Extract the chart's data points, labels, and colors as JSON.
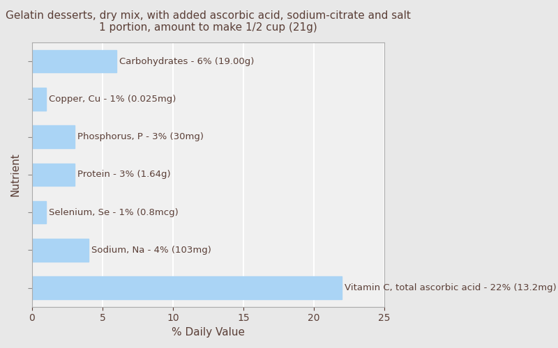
{
  "title_line1": "Gelatin desserts, dry mix, with added ascorbic acid, sodium-citrate and salt",
  "title_line2": "1 portion, amount to make 1/2 cup (21g)",
  "xlabel": "% Daily Value",
  "ylabel": "Nutrient",
  "background_color": "#e8e8e8",
  "plot_background_color": "#f0f0f0",
  "bar_color": "#aad4f5",
  "title_color": "#5a3e36",
  "label_color": "#5a3e36",
  "axis_label_color": "#5a3e36",
  "tick_label_color": "#5a3e36",
  "grid_color": "#ffffff",
  "xlim": [
    0,
    25
  ],
  "xticks": [
    0,
    5,
    10,
    15,
    20,
    25
  ],
  "nutrients_top_to_bottom": [
    "Carbohydrates",
    "Copper, Cu",
    "Phosphorus, P",
    "Protein",
    "Selenium, Se",
    "Sodium, Na",
    "Vitamin C, total ascorbic acid"
  ],
  "values_top_to_bottom": [
    6,
    1,
    3,
    3,
    1,
    4,
    22
  ],
  "labels_top_to_bottom": [
    "Carbohydrates - 6% (19.00g)",
    "Copper, Cu - 1% (0.025mg)",
    "Phosphorus, P - 3% (30mg)",
    "Protein - 3% (1.64g)",
    "Selenium, Se - 1% (0.8mcg)",
    "Sodium, Na - 4% (103mg)",
    "Vitamin C, total ascorbic acid - 22% (13.2mg)"
  ],
  "title_fontsize": 11,
  "label_fontsize": 9.5,
  "axis_fontsize": 11,
  "tick_fontsize": 10
}
